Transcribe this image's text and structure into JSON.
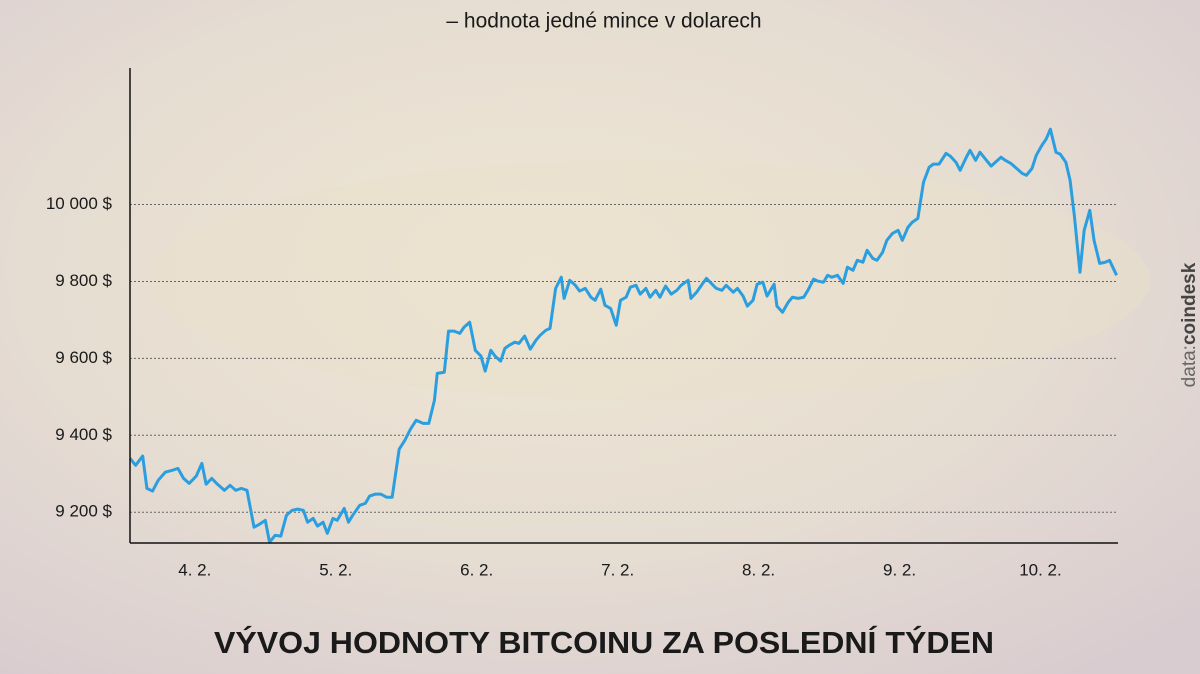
{
  "chart_data": {
    "type": "line",
    "subtitle": "– hodnota jedné mince v dolarech",
    "title": "VÝVOJ HODNOTY BITCOINU ZA POSLEDNÍ TÝDEN",
    "source_label": "data:",
    "source": "coindesk",
    "color": "#2b9ee0",
    "grid": true,
    "xlim": [
      4.04,
      11.05
    ],
    "ylim": [
      9120,
      10355
    ],
    "xticks": [
      {
        "value": 4.5,
        "label": "4. 2."
      },
      {
        "value": 5.5,
        "label": "5. 2."
      },
      {
        "value": 6.5,
        "label": "6. 2."
      },
      {
        "value": 7.5,
        "label": "7. 2."
      },
      {
        "value": 8.5,
        "label": "8. 2."
      },
      {
        "value": 9.5,
        "label": "9. 2."
      },
      {
        "value": 10.5,
        "label": "10. 2."
      }
    ],
    "yticks": [
      {
        "value": 9200,
        "label": "9 200 $"
      },
      {
        "value": 9400,
        "label": "9 400 $"
      },
      {
        "value": 9600,
        "label": "9 600 $"
      },
      {
        "value": 9800,
        "label": "9 800 $"
      },
      {
        "value": 10000,
        "label": "10 000 $"
      }
    ],
    "x": [
      4.04,
      4.08,
      4.13,
      4.16,
      4.2,
      4.24,
      4.29,
      4.34,
      4.38,
      4.42,
      4.46,
      4.51,
      4.55,
      4.58,
      4.62,
      4.66,
      4.71,
      4.75,
      4.79,
      4.83,
      4.87,
      4.92,
      4.96,
      5.0,
      5.03,
      5.07,
      5.11,
      5.15,
      5.19,
      5.23,
      5.27,
      5.3,
      5.34,
      5.37,
      5.41,
      5.44,
      5.48,
      5.51,
      5.56,
      5.59,
      5.62,
      5.67,
      5.71,
      5.74,
      5.78,
      5.82,
      5.86,
      5.9,
      5.95,
      5.99,
      6.03,
      6.07,
      6.12,
      6.16,
      6.2,
      6.22,
      6.27,
      6.3,
      6.34,
      6.38,
      6.41,
      6.45,
      6.49,
      6.53,
      6.56,
      6.6,
      6.63,
      6.67,
      6.7,
      6.73,
      6.77,
      6.8,
      6.84,
      6.88,
      6.92,
      6.95,
      6.99,
      7.02,
      7.06,
      7.1,
      7.12,
      7.16,
      7.2,
      7.23,
      7.27,
      7.31,
      7.34,
      7.38,
      7.41,
      7.45,
      7.49,
      7.52,
      7.56,
      7.59,
      7.63,
      7.66,
      7.7,
      7.73,
      7.77,
      7.8,
      7.84,
      7.88,
      7.92,
      7.95,
      8.0,
      8.02,
      8.06,
      8.1,
      8.13,
      8.17,
      8.2,
      8.24,
      8.27,
      8.32,
      8.35,
      8.39,
      8.42,
      8.46,
      8.49,
      8.53,
      8.56,
      8.61,
      8.63,
      8.67,
      8.71,
      8.74,
      8.78,
      8.82,
      8.85,
      8.89,
      8.92,
      8.96,
      8.99,
      9.02,
      9.06,
      9.1,
      9.13,
      9.17,
      9.2,
      9.24,
      9.27,
      9.31,
      9.34,
      9.38,
      9.41,
      9.45,
      9.49,
      9.52,
      9.56,
      9.59,
      9.63,
      9.67,
      9.71,
      9.74,
      9.78,
      9.83,
      9.86,
      9.9,
      9.93,
      9.97,
      10.0,
      10.04,
      10.07,
      10.11,
      10.15,
      10.18,
      10.22,
      10.25,
      10.29,
      10.33,
      10.37,
      10.4,
      10.44,
      10.47,
      10.51,
      10.54,
      10.57,
      10.61,
      10.64,
      10.68,
      10.71,
      10.74,
      10.78,
      10.81,
      10.85,
      10.88,
      10.92,
      10.96,
      10.99,
      11.04
    ],
    "values": [
      9340,
      9322,
      9346,
      9262,
      9255,
      9283,
      9304,
      9309,
      9314,
      9288,
      9275,
      9294,
      9327,
      9273,
      9288,
      9273,
      9257,
      9270,
      9257,
      9262,
      9257,
      9161,
      9169,
      9179,
      9122,
      9140,
      9138,
      9192,
      9205,
      9208,
      9205,
      9174,
      9184,
      9164,
      9174,
      9145,
      9184,
      9179,
      9210,
      9174,
      9192,
      9218,
      9223,
      9242,
      9247,
      9247,
      9239,
      9239,
      9364,
      9387,
      9416,
      9439,
      9431,
      9431,
      9491,
      9561,
      9564,
      9671,
      9671,
      9665,
      9681,
      9694,
      9621,
      9606,
      9567,
      9621,
      9606,
      9593,
      9626,
      9634,
      9642,
      9639,
      9658,
      9624,
      9647,
      9660,
      9673,
      9678,
      9782,
      9811,
      9756,
      9803,
      9790,
      9775,
      9782,
      9759,
      9751,
      9780,
      9738,
      9730,
      9686,
      9751,
      9759,
      9785,
      9790,
      9767,
      9782,
      9759,
      9777,
      9759,
      9788,
      9767,
      9777,
      9790,
      9803,
      9756,
      9772,
      9793,
      9808,
      9793,
      9782,
      9777,
      9790,
      9772,
      9782,
      9762,
      9736,
      9751,
      9793,
      9798,
      9762,
      9793,
      9736,
      9720,
      9746,
      9759,
      9756,
      9759,
      9777,
      9806,
      9801,
      9798,
      9816,
      9811,
      9816,
      9795,
      9837,
      9829,
      9855,
      9850,
      9881,
      9860,
      9855,
      9876,
      9907,
      9925,
      9933,
      9907,
      9941,
      9954,
      9964,
      10058,
      10097,
      10105,
      10105,
      10133,
      10126,
      10110,
      10089,
      10120,
      10141,
      10115,
      10136,
      10118,
      10100,
      10110,
      10123,
      10115,
      10107,
      10094,
      10081,
      10076,
      10094,
      10128,
      10154,
      10170,
      10196,
      10136,
      10131,
      10110,
      10063,
      9972,
      9824,
      9933,
      9985,
      9907,
      9847,
      9850,
      9855,
      9816
    ]
  }
}
